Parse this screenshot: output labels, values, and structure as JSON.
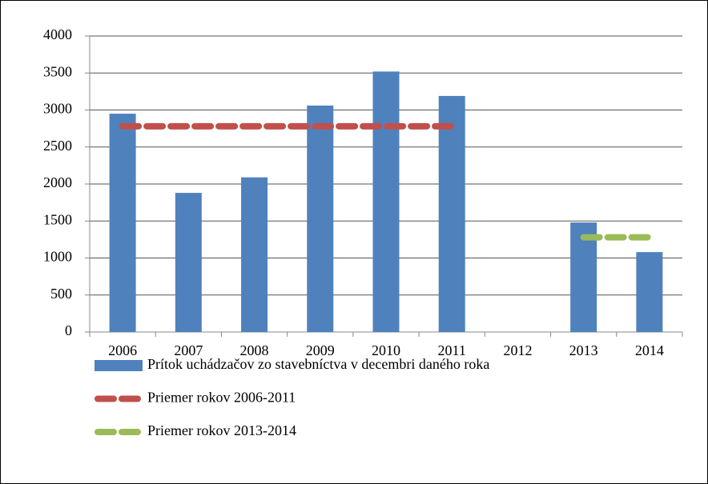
{
  "chart_data": {
    "type": "bar",
    "categories": [
      "2006",
      "2007",
      "2008",
      "2009",
      "2010",
      "2011",
      "2012",
      "2013",
      "2014"
    ],
    "series": [
      {
        "name": "Prítok uchádzačov zo stavebníctva v decembri daného roka",
        "type": "bar",
        "color": "#4f81bd",
        "values": [
          2950,
          1880,
          2090,
          3060,
          3520,
          3190,
          null,
          1480,
          1080
        ]
      },
      {
        "name": "Priemer rokov 2006-2011",
        "type": "line",
        "color": "#c0504d",
        "values": [
          2780,
          2780,
          2780,
          2780,
          2780,
          2780,
          null,
          null,
          null
        ]
      },
      {
        "name": "Priemer rokov 2013-2014",
        "type": "line",
        "color": "#9bbb59",
        "values": [
          null,
          null,
          null,
          null,
          null,
          null,
          null,
          1280,
          1280
        ]
      }
    ],
    "ylim": [
      0,
      4000
    ],
    "yticks": [
      0,
      500,
      1000,
      1500,
      2000,
      2500,
      3000,
      3500,
      4000
    ],
    "grid": true
  }
}
